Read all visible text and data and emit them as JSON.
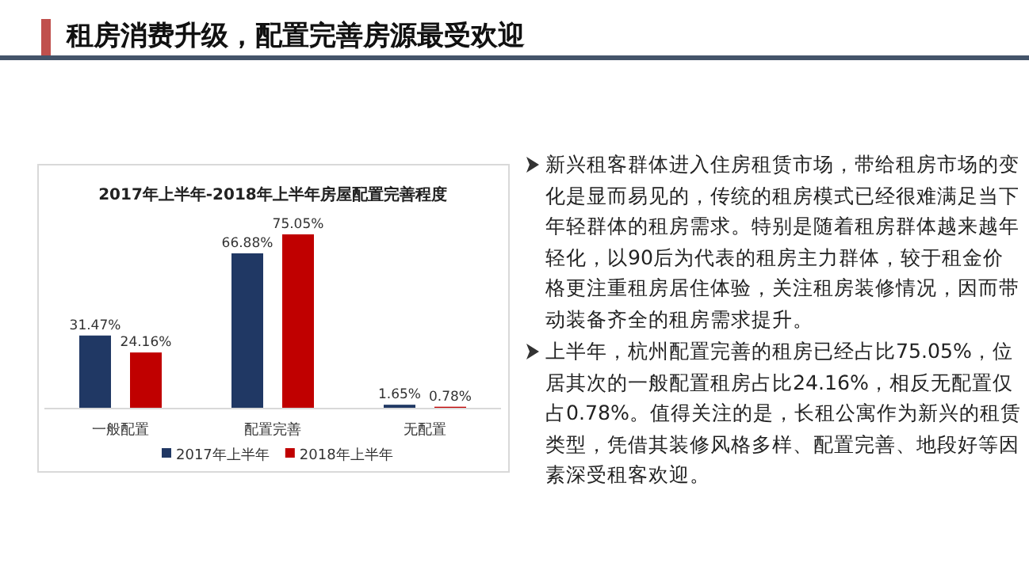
{
  "chart_data": {
    "type": "bar",
    "title": "租房消费升级，配置完善房源最受欢迎",
    "subtitle": "2017年上半年-2018年上半年房屋配置完善程度",
    "categories": [
      "一般配置",
      "配置完善",
      "无配置"
    ],
    "series": [
      {
        "name": "2017年上半年",
        "color": "#203864",
        "values": [
          31.47,
          66.88,
          1.65
        ],
        "value_labels": [
          "31.47%",
          "66.88%",
          "1.65%"
        ]
      },
      {
        "name": "2018年上半年",
        "color": "#c00000",
        "values": [
          24.16,
          75.05,
          0.78
        ],
        "value_labels": [
          "24.16%",
          "75.05%",
          "0.78%"
        ]
      }
    ],
    "legend": "bottom",
    "annotations": [
      "新兴租客群体进入住房租赁市场，带给租房市场的变化是显而易见的，传统的租房模式已经很难满足当下年轻群体的租房需求。特别是随着租房群体越来越年轻化，以90后为代表的租房主力群体，较于租金价格更注重租房居住体验，关注租房装修情况，因而带动装备齐全的租房需求提升。",
      "上半年，杭州配置完善的租房已经占比75.05%，位居其次的一般配置租房占比24.16%，相反无配置仅占0.78%。值得关注的是，长租公寓作为新兴的租赁类型，凭借其装修风格多样、配置完善、地段好等因素深受租客欢迎。"
    ]
  }
}
